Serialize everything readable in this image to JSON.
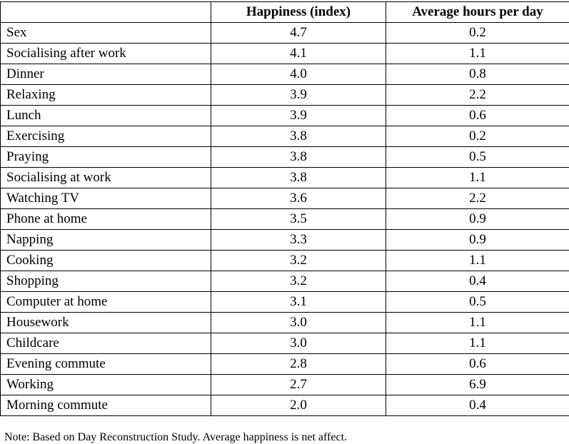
{
  "table": {
    "headers": [
      "",
      "Happiness (index)",
      "Average hours per day"
    ],
    "rows": [
      {
        "activity": "Sex",
        "happiness": "4.7",
        "hours": "0.2"
      },
      {
        "activity": "Socialising after work",
        "happiness": "4.1",
        "hours": "1.1"
      },
      {
        "activity": "Dinner",
        "happiness": "4.0",
        "hours": "0.8"
      },
      {
        "activity": "Relaxing",
        "happiness": "3.9",
        "hours": "2.2"
      },
      {
        "activity": "Lunch",
        "happiness": "3.9",
        "hours": "0.6"
      },
      {
        "activity": "Exercising",
        "happiness": "3.8",
        "hours": "0.2"
      },
      {
        "activity": "Praying",
        "happiness": "3.8",
        "hours": "0.5"
      },
      {
        "activity": "Socialising at work",
        "happiness": "3.8",
        "hours": "1.1"
      },
      {
        "activity": "Watching TV",
        "happiness": "3.6",
        "hours": "2.2"
      },
      {
        "activity": "Phone at home",
        "happiness": "3.5",
        "hours": "0.9"
      },
      {
        "activity": "Napping",
        "happiness": "3.3",
        "hours": "0.9"
      },
      {
        "activity": "Cooking",
        "happiness": "3.2",
        "hours": "1.1"
      },
      {
        "activity": "Shopping",
        "happiness": "3.2",
        "hours": "0.4"
      },
      {
        "activity": "Computer at home",
        "happiness": "3.1",
        "hours": "0.5"
      },
      {
        "activity": "Housework",
        "happiness": "3.0",
        "hours": "1.1"
      },
      {
        "activity": "Childcare",
        "happiness": "3.0",
        "hours": "1.1"
      },
      {
        "activity": "Evening commute",
        "happiness": "2.8",
        "hours": "0.6"
      },
      {
        "activity": "Working",
        "happiness": "2.7",
        "hours": "6.9"
      },
      {
        "activity": "Morning commute",
        "happiness": "2.0",
        "hours": "0.4"
      }
    ]
  },
  "note": "Note: Based on Day Reconstruction Study.  Average happiness is net affect."
}
